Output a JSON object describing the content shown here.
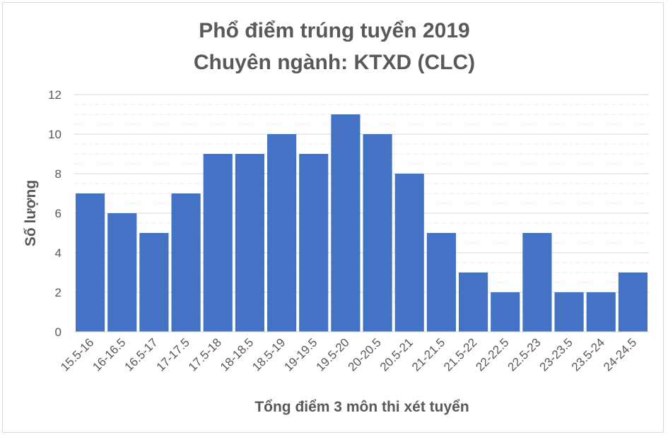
{
  "chart_data": {
    "type": "bar",
    "title": "Phổ điểm trúng tuyển 2019",
    "subtitle": "Chuyên ngành: KTXD (CLC)",
    "xlabel": "Tổng điểm 3 môn thi xét tuyển",
    "ylabel": "Số lượng",
    "categories": [
      "15.5-16",
      "16-16.5",
      "16.5-17",
      "17-17.5",
      "17.5-18",
      "18-18.5",
      "18.5-19",
      "19-19.5",
      "19.5-20",
      "20-20.5",
      "20.5-21",
      "21-21.5",
      "21.5-22",
      "22-22.5",
      "22.5-23",
      "23-23.5",
      "23.5-24",
      "24-24.5"
    ],
    "values": [
      7,
      6,
      5,
      7,
      9,
      9,
      10,
      9,
      11,
      10,
      8,
      5,
      3,
      2,
      5,
      2,
      2,
      3
    ],
    "ylim": [
      0,
      12
    ],
    "yticks": [
      "0",
      "2",
      "4",
      "6",
      "8",
      "10",
      "12"
    ],
    "grid": true,
    "bar_color": "#4472C4",
    "legend": "none"
  }
}
